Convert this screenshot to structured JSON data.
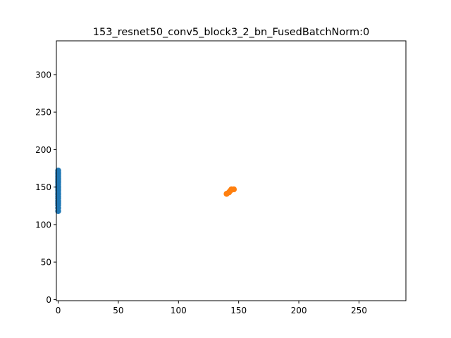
{
  "chart_data": {
    "type": "scatter",
    "title": "153_resnet50_conv5_block3_2_bn_FusedBatchNorm:0",
    "xlabel": "",
    "ylabel": "",
    "xlim": [
      -1.5,
      289
    ],
    "ylim": [
      -1.5,
      345
    ],
    "xticks": [
      0,
      50,
      100,
      150,
      200,
      250
    ],
    "yticks": [
      0,
      50,
      100,
      150,
      200,
      250,
      300
    ],
    "xtick_labels": [
      "0",
      "50",
      "100",
      "150",
      "200",
      "250"
    ],
    "ytick_labels": [
      "0",
      "50",
      "100",
      "150",
      "200",
      "250",
      "300"
    ],
    "grid": false,
    "series": [
      {
        "color": "#1f77b4",
        "points": [
          [
            0,
            118
          ],
          [
            0,
            122
          ],
          [
            0,
            126
          ],
          [
            0,
            128
          ],
          [
            0,
            130
          ],
          [
            0,
            132
          ],
          [
            0,
            135
          ],
          [
            0,
            137
          ],
          [
            0,
            140
          ],
          [
            0,
            142
          ],
          [
            0,
            145
          ],
          [
            0,
            147
          ],
          [
            0,
            149
          ],
          [
            0,
            151
          ],
          [
            0,
            154
          ],
          [
            0,
            156
          ],
          [
            0,
            158
          ],
          [
            0,
            160
          ],
          [
            0,
            162
          ],
          [
            0,
            164
          ],
          [
            0,
            166
          ],
          [
            0,
            168
          ],
          [
            0,
            170
          ],
          [
            0,
            172
          ]
        ]
      },
      {
        "color": "#ff7f0e",
        "points": [
          [
            140,
            141
          ],
          [
            142,
            143
          ],
          [
            143,
            145
          ],
          [
            144,
            147
          ],
          [
            146,
            147
          ]
        ]
      }
    ]
  }
}
